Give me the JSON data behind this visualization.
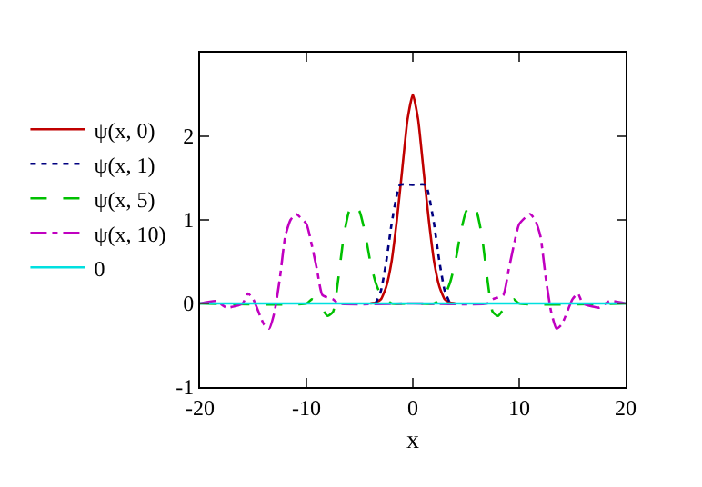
{
  "chart_data": {
    "type": "line",
    "xlabel": "x",
    "xlim": [
      -20,
      20
    ],
    "xticks": [
      -20,
      -10,
      0,
      10,
      20
    ],
    "ylim": [
      -1,
      3
    ],
    "yticks": [
      -1,
      0,
      1,
      2
    ],
    "grid": false,
    "legend": "left",
    "marker": "none",
    "series": [
      {
        "name": "ψ(x, 0)",
        "color": "#c00000",
        "line_style": "solid",
        "x": [
          -4,
          -3.5,
          -3,
          -2.5,
          -2,
          -1.5,
          -1,
          -0.5,
          0,
          0.5,
          1,
          1.5,
          2,
          2.5,
          3,
          3.5,
          4
        ],
        "values": [
          0,
          0.01,
          0.05,
          0.2,
          0.5,
          1,
          1.6,
          2.2,
          2.5,
          2.2,
          1.6,
          1,
          0.5,
          0.2,
          0.05,
          0.01,
          0
        ]
      },
      {
        "name": "ψ(x, 1)",
        "color": "#000080",
        "line_style": "dotted",
        "x": [
          -3.5,
          -3,
          -2.5,
          -2,
          -1.5,
          -1.2,
          0,
          1.2,
          1.5,
          2,
          2.5,
          3,
          3.5
        ],
        "values": [
          0,
          0.15,
          0.5,
          0.95,
          1.3,
          1.42,
          1.42,
          1.42,
          1.3,
          0.95,
          0.5,
          0.15,
          0
        ]
      },
      {
        "name": "ψ(x, 5)",
        "color": "#00c000",
        "line_style": "dashed",
        "x": [
          -20,
          -10,
          -9.5,
          -9,
          -8,
          -7.5,
          -7,
          -6.5,
          -6,
          -5.5,
          -5,
          -4.5,
          -4,
          -3.5,
          -3,
          -2.5,
          -2,
          0,
          2,
          2.5,
          3,
          3.5,
          4,
          4.5,
          5,
          5.5,
          6,
          6.5,
          7,
          7.5,
          8,
          9,
          9.5,
          10,
          20
        ],
        "values": [
          0,
          0,
          0.05,
          0.02,
          -0.15,
          -0.1,
          0.3,
          0.8,
          1.1,
          1.18,
          1.1,
          0.85,
          0.5,
          0.25,
          0.1,
          0.05,
          0,
          0,
          0,
          0.05,
          0.1,
          0.25,
          0.5,
          0.85,
          1.1,
          1.18,
          1.1,
          0.8,
          0.3,
          -0.1,
          -0.15,
          0.02,
          0.05,
          0,
          0
        ]
      },
      {
        "name": "ψ(x, 10)",
        "color": "#c000c0",
        "line_style": "dashdot",
        "x": [
          -20,
          -18.5,
          -17.5,
          -16,
          -15.5,
          -15,
          -14,
          -13.5,
          -13,
          -12.5,
          -12,
          -11.5,
          -11,
          -10,
          -9.5,
          -9,
          -8.5,
          -7.5,
          -7,
          0,
          7,
          7.5,
          8.5,
          9,
          9.5,
          10,
          11,
          11.5,
          12,
          12.5,
          13,
          13.5,
          14,
          15,
          15.5,
          16,
          17.5,
          18.5,
          20
        ],
        "values": [
          0,
          0.03,
          -0.05,
          0,
          0.12,
          0.05,
          -0.25,
          -0.3,
          -0.1,
          0.3,
          0.8,
          1,
          1.07,
          0.95,
          0.7,
          0.4,
          0.1,
          0.05,
          0,
          0,
          0,
          0.05,
          0.1,
          0.4,
          0.7,
          0.95,
          1.07,
          1,
          0.8,
          0.3,
          -0.1,
          -0.3,
          -0.25,
          0.05,
          0.12,
          0,
          -0.05,
          0.03,
          0
        ]
      },
      {
        "name": "0",
        "color": "#00e0e0",
        "line_style": "solid",
        "x": [
          -20,
          20
        ],
        "values": [
          0,
          0
        ]
      }
    ]
  }
}
